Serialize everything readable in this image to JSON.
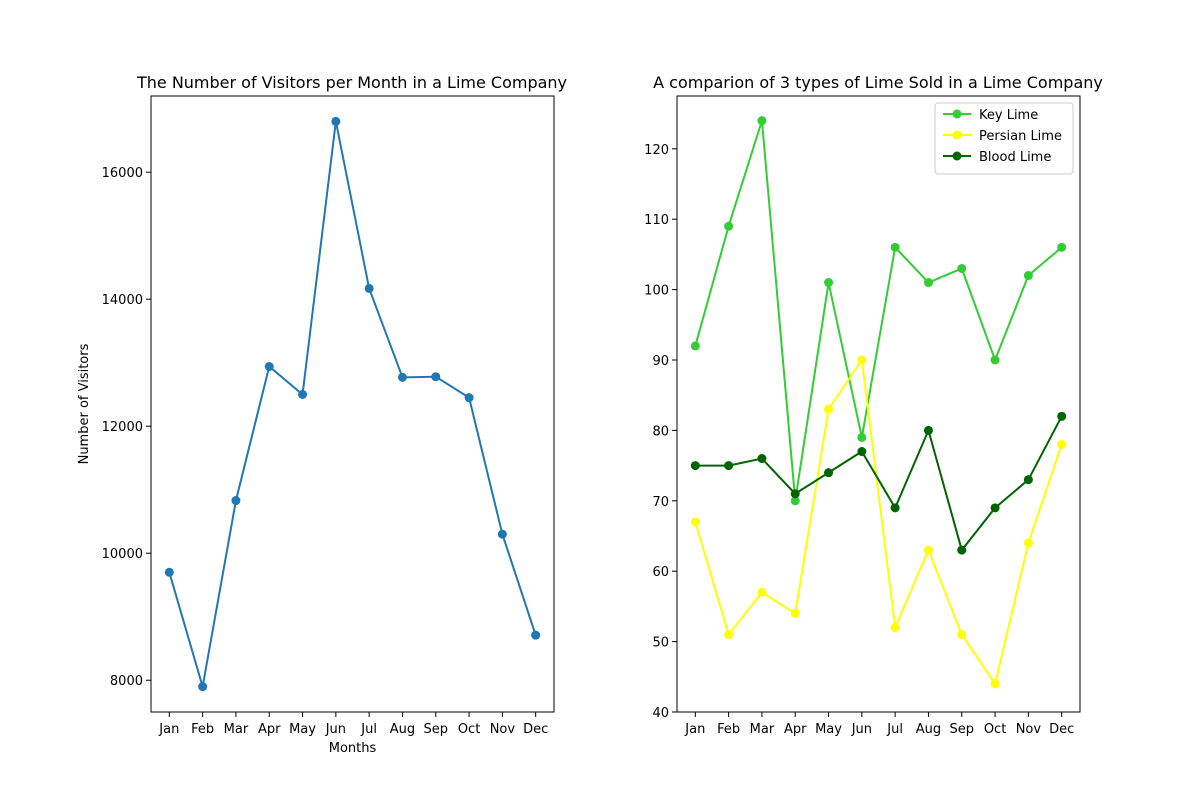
{
  "chart_data": [
    {
      "type": "line",
      "title": "The Number of Visitors per Month in a Lime Company",
      "xlabel": "Months",
      "ylabel": "Number of Visitors",
      "categories": [
        "Jan",
        "Feb",
        "Mar",
        "Apr",
        "May",
        "Jun",
        "Jul",
        "Aug",
        "Sep",
        "Oct",
        "Nov",
        "Dec"
      ],
      "ylim": [
        7500,
        17200
      ],
      "yticks": [
        8000,
        10000,
        12000,
        14000,
        16000
      ],
      "grid": false,
      "series": [
        {
          "color": "#1f77b4",
          "marker": "circle",
          "values": [
            9700,
            7900,
            10830,
            12940,
            12500,
            16800,
            14170,
            12770,
            12780,
            12450,
            10300,
            8710
          ]
        }
      ]
    },
    {
      "type": "line",
      "title": "A comparion of 3 types of Lime Sold in a Lime Company",
      "xlabel": "",
      "ylabel": "",
      "categories": [
        "Jan",
        "Feb",
        "Mar",
        "Apr",
        "May",
        "Jun",
        "Jul",
        "Aug",
        "Sep",
        "Oct",
        "Nov",
        "Dec"
      ],
      "ylim": [
        40,
        127.5
      ],
      "yticks": [
        40,
        50,
        60,
        70,
        80,
        90,
        100,
        110,
        120
      ],
      "grid": false,
      "legend": "top-right",
      "series": [
        {
          "name": "Key Lime",
          "color": "#32cd32",
          "marker": "circle",
          "values": [
            92,
            109,
            124,
            70,
            101,
            79,
            106,
            101,
            103,
            90,
            102,
            106
          ]
        },
        {
          "name": "Persian Lime",
          "color": "#ffff00",
          "marker": "circle",
          "values": [
            67,
            51,
            57,
            54,
            83,
            90,
            52,
            63,
            51,
            44,
            64,
            78
          ]
        },
        {
          "name": "Blood Lime",
          "color": "#006400",
          "marker": "circle",
          "values": [
            75,
            75,
            76,
            71,
            74,
            77,
            69,
            80,
            63,
            69,
            73,
            82
          ]
        }
      ]
    }
  ]
}
